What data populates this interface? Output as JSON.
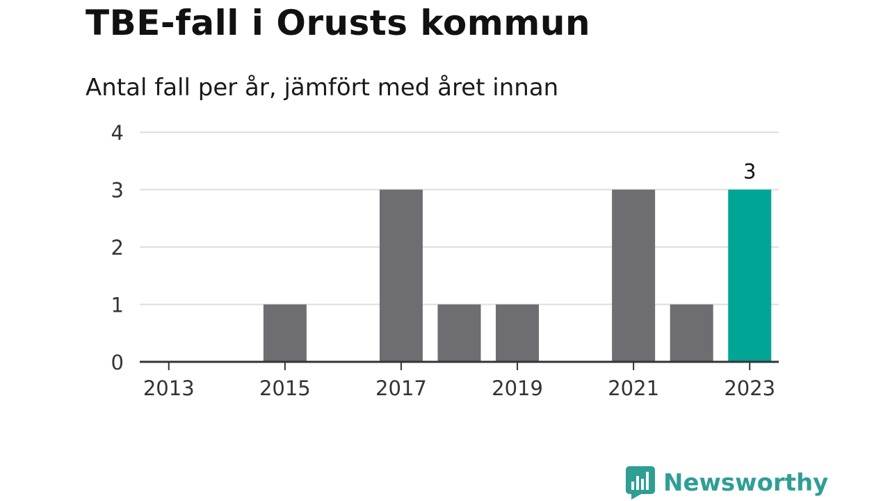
{
  "title": "TBE-fall i Orusts kommun",
  "subtitle": "Antal fall per år, jämfört med året innan",
  "brand": {
    "name": "Newsworthy"
  },
  "colors": {
    "bar": "#6e6d72",
    "highlight": "#00a596",
    "grid": "#dddddd",
    "axis": "#333333",
    "brand": "#2f9e95"
  },
  "chart_data": {
    "type": "bar",
    "categories": [
      "2013",
      "2014",
      "2015",
      "2016",
      "2017",
      "2018",
      "2019",
      "2020",
      "2021",
      "2022",
      "2023"
    ],
    "values": [
      0,
      0,
      1,
      0,
      3,
      1,
      1,
      0,
      3,
      1,
      3
    ],
    "highlight_category": "2023",
    "highlight_label": "3",
    "x_tick_labels": [
      "2013",
      "2015",
      "2017",
      "2019",
      "2021",
      "2023"
    ],
    "y_ticks": [
      0,
      1,
      2,
      3,
      4
    ],
    "ylim": [
      0,
      4
    ],
    "grid": true,
    "xlabel": "",
    "ylabel": ""
  }
}
